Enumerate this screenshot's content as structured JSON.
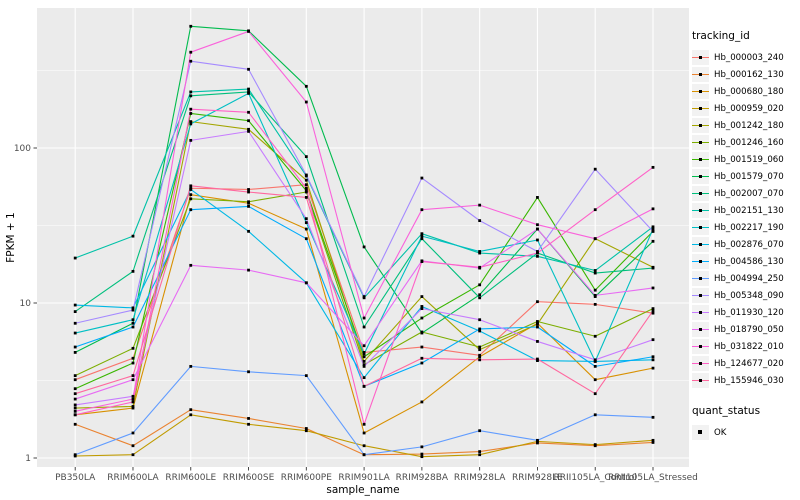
{
  "axes": {
    "x_title": "sample_name",
    "y_title": "FPKM + 1",
    "y_ticks": [
      "100",
      "10",
      "1"
    ],
    "y_tick_values": [
      100,
      10,
      1
    ]
  },
  "legend": {
    "tracking_title": "tracking_id",
    "quant_title": "quant_status",
    "quant_item": "OK"
  },
  "style": {
    "panel_bg": "#EBEBEB",
    "grid_color": "#FFFFFF",
    "tick_text_color": "#4D4D4D",
    "point_color": "#000000"
  },
  "chart_data": {
    "type": "line",
    "title": "",
    "xlabel": "sample_name",
    "ylabel": "FPKM + 1",
    "yscale": "log10",
    "ylim": [
      1,
      800
    ],
    "grid": true,
    "legend_position": "right",
    "legend_title": "tracking_id",
    "legend2": {
      "title": "quant_status",
      "items": [
        "OK"
      ]
    },
    "categories": [
      "PB350LA",
      "RRIM600LA",
      "RRIM600LE",
      "RRIM600SE",
      "RRIM600PE",
      "RRIM901LA",
      "RRIM928BA",
      "RRIM928LA",
      "RRIM928LE",
      "RRII105LA_Control",
      "RRII105LA_Stressed"
    ],
    "series": [
      {
        "name": "Hb_000003_240",
        "color": "#F8766D",
        "values": [
          3.2,
          4.4,
          55,
          54,
          58,
          4.8,
          5.2,
          4.6,
          10.2,
          9.8,
          8.6
        ]
      },
      {
        "name": "Hb_000162_130",
        "color": "#EA8331",
        "values": [
          1.65,
          1.2,
          2.05,
          1.8,
          1.55,
          1.05,
          1.06,
          1.1,
          1.25,
          1.2,
          1.26
        ]
      },
      {
        "name": "Hb_000680_180",
        "color": "#D89000",
        "values": [
          1.9,
          2.1,
          50,
          44,
          30,
          1.45,
          2.3,
          4.5,
          7.4,
          3.2,
          3.8
        ]
      },
      {
        "name": "Hb_000959_020",
        "color": "#C09B00",
        "values": [
          1.03,
          1.05,
          1.9,
          1.65,
          1.5,
          1.2,
          1.02,
          1.05,
          1.28,
          1.22,
          1.3
        ]
      },
      {
        "name": "Hb_001242_180",
        "color": "#A3A500",
        "values": [
          2.1,
          2.15,
          148,
          132,
          62,
          4.2,
          11,
          5.0,
          7.3,
          26,
          17
        ]
      },
      {
        "name": "Hb_001246_160",
        "color": "#7CAE00",
        "values": [
          3.4,
          5.1,
          47,
          45,
          52,
          4.0,
          6.5,
          5.2,
          7.6,
          6.1,
          9.2
        ]
      },
      {
        "name": "Hb_001519_060",
        "color": "#39B600",
        "values": [
          2.8,
          4.1,
          167,
          150,
          53,
          4.5,
          8.0,
          13.1,
          48,
          12.1,
          29
        ]
      },
      {
        "name": "Hb_001579_070",
        "color": "#00BB4E",
        "values": [
          4.8,
          7.4,
          610,
          570,
          250,
          23,
          6.4,
          11.3,
          30,
          11,
          25
        ]
      },
      {
        "name": "Hb_002007_070",
        "color": "#00BF7D",
        "values": [
          8.8,
          16,
          217,
          230,
          88,
          7.0,
          26,
          10.8,
          21,
          15.6,
          16.8
        ]
      },
      {
        "name": "Hb_002151_130",
        "color": "#00C1A7",
        "values": [
          19.5,
          27,
          230,
          240,
          66,
          10.8,
          28,
          21,
          20,
          16.2,
          31
        ]
      },
      {
        "name": "Hb_002217_190",
        "color": "#00BFC4",
        "values": [
          6.4,
          7.8,
          143,
          225,
          33,
          4.7,
          27,
          21.5,
          25.5,
          4.2,
          30
        ]
      },
      {
        "name": "Hb_002876_070",
        "color": "#00B8E5",
        "values": [
          9.7,
          9.3,
          54,
          29,
          13.5,
          3.3,
          9.5,
          6.6,
          4.25,
          4.2,
          4.3
        ]
      },
      {
        "name": "Hb_004586_130",
        "color": "#00ACFC",
        "values": [
          5.2,
          7.0,
          40,
          42,
          26,
          2.9,
          4.1,
          6.8,
          7.0,
          3.9,
          4.5
        ]
      },
      {
        "name": "Hb_004994_250",
        "color": "#619CFF",
        "values": [
          1.05,
          1.45,
          3.9,
          3.6,
          3.4,
          1.05,
          1.18,
          1.5,
          1.3,
          1.9,
          1.83
        ]
      },
      {
        "name": "Hb_005348_090",
        "color": "#A58AFF",
        "values": [
          7.4,
          9.0,
          363,
          322,
          67,
          11,
          64,
          34,
          21.5,
          73,
          29
        ]
      },
      {
        "name": "Hb_011930_120",
        "color": "#C77CFF",
        "values": [
          2.2,
          2.5,
          112,
          128,
          35,
          3.9,
          9.2,
          7.8,
          5.65,
          4.3,
          5.8
        ]
      },
      {
        "name": "Hb_018790_050",
        "color": "#E76BF3",
        "values": [
          2.4,
          3.2,
          17.5,
          16.3,
          13.5,
          5.3,
          18.7,
          16.8,
          30,
          11.2,
          12.5
        ]
      },
      {
        "name": "Hb_031822_010",
        "color": "#FA62DB",
        "values": [
          2.0,
          2.4,
          415,
          565,
          198,
          8.0,
          40,
          42.8,
          32,
          26,
          40.5
        ]
      },
      {
        "name": "Hb_124677_020",
        "color": "#FF61C7",
        "values": [
          1.9,
          2.3,
          178,
          170,
          55,
          1.65,
          18.5,
          17,
          21,
          40,
          75
        ]
      },
      {
        "name": "Hb_155946_030",
        "color": "#FF689F",
        "values": [
          2.6,
          3.4,
          57,
          52,
          48,
          2.9,
          4.4,
          4.3,
          4.35,
          2.6,
          8.9
        ]
      }
    ]
  }
}
